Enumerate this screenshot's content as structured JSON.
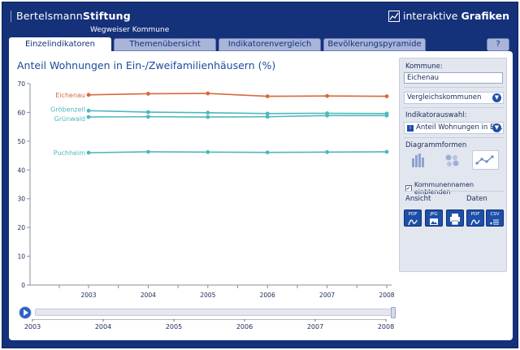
{
  "header": {
    "brand_light": "Bertelsmann",
    "brand_bold": "Stiftung",
    "subtitle": "Wegweiser Kommune",
    "product_light": "interaktive",
    "product_bold": "Grafiken"
  },
  "tabs": [
    {
      "label": "Einzelindikatoren",
      "active": true
    },
    {
      "label": "Themenübersicht",
      "active": false
    },
    {
      "label": "Indikatorenvergleich",
      "active": false
    },
    {
      "label": "Bevölkerungspyramide",
      "active": false
    }
  ],
  "help_label": "?",
  "chart_title": "Anteil Wohnungen in Ein-/Zweifamilienhäusern (%)",
  "sidebar": {
    "kommune_label": "Kommune:",
    "kommune_value": "Eichenau",
    "vergleich_label": "Vergleichskommunen",
    "indikator_label": "Indikatorauswahl:",
    "indikator_value": "Anteil Wohnungen in Ei...",
    "diagramm_label": "Diagrammformen",
    "checkbox_label": "Kommunennamen einblenden",
    "checkbox_checked": true,
    "ansicht_label": "Ansicht",
    "daten_label": "Daten",
    "export_pdf": "PDF",
    "export_jpg": "JPG",
    "export_pdf_data": "PDF",
    "export_csv": "CSV"
  },
  "chart_data": {
    "type": "line",
    "x": [
      "2003",
      "2004",
      "2005",
      "2006",
      "2007",
      "2008"
    ],
    "ylim": [
      0,
      70
    ],
    "yticks": [
      0,
      10,
      20,
      30,
      40,
      50,
      60,
      70
    ],
    "grid": false,
    "series": [
      {
        "name": "Eichenau",
        "color": "#d9683c",
        "values": [
          66.1,
          66.5,
          66.6,
          65.6,
          65.7,
          65.6
        ]
      },
      {
        "name": "Gröbenzell",
        "color": "#4fb8bd",
        "values": [
          60.6,
          60.1,
          59.9,
          59.6,
          59.7,
          59.6
        ]
      },
      {
        "name": "Grünwald",
        "color": "#4fb8bd",
        "values": [
          58.4,
          58.5,
          58.4,
          58.5,
          58.9,
          58.9
        ]
      },
      {
        "name": "Puchheim",
        "color": "#4fb8bd",
        "values": [
          46.0,
          46.3,
          46.2,
          46.1,
          46.2,
          46.3
        ]
      }
    ]
  },
  "slider": {
    "ticks": [
      "2003",
      "2004",
      "2005",
      "2006",
      "2007",
      "2008"
    ],
    "value": "2008"
  }
}
